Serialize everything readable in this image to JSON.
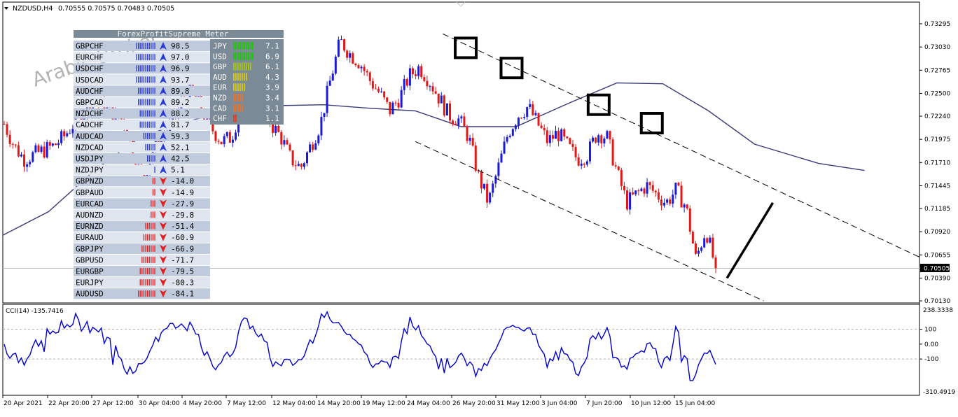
{
  "header": {
    "symbol_label": "NZDUSD,H4",
    "ohlc_label": "0.70555 0.70575 0.70483 0.70505"
  },
  "watermark": "Arabic Broker",
  "current_price_label": "0.70505",
  "meter": {
    "title": "ForexProfitSupreme Meter",
    "pairs": [
      {
        "pair": "GBPCHF",
        "value": "98.5",
        "bars": 11,
        "dir": "up"
      },
      {
        "pair": "EURCHF",
        "value": "97.0",
        "bars": 11,
        "dir": "up"
      },
      {
        "pair": "USDCHF",
        "value": "96.9",
        "bars": 11,
        "dir": "up"
      },
      {
        "pair": "USDCAD",
        "value": "93.7",
        "bars": 11,
        "dir": "up"
      },
      {
        "pair": "AUDCHF",
        "value": "89.8",
        "bars": 10,
        "dir": "up"
      },
      {
        "pair": "GBPCAD",
        "value": "89.2",
        "bars": 10,
        "dir": "up"
      },
      {
        "pair": "NZDCHF",
        "value": "88.2",
        "bars": 9,
        "dir": "up"
      },
      {
        "pair": "CADCHF",
        "value": "81.7",
        "bars": 9,
        "dir": "up"
      },
      {
        "pair": "AUDCAD",
        "value": "59.3",
        "bars": 7,
        "dir": "up"
      },
      {
        "pair": "NZDCAD",
        "value": "52.1",
        "bars": 6,
        "dir": "up"
      },
      {
        "pair": "USDJPY",
        "value": "42.5",
        "bars": 5,
        "dir": "up"
      },
      {
        "pair": "NZDJPY",
        "value": "5.1",
        "bars": 1,
        "dir": "up"
      },
      {
        "pair": "GBPNZD",
        "value": "-14.0",
        "bars": 2,
        "dir": "down"
      },
      {
        "pair": "GBPAUD",
        "value": "-14.9",
        "bars": 2,
        "dir": "down"
      },
      {
        "pair": "EURCAD",
        "value": "-27.9",
        "bars": 3,
        "dir": "down"
      },
      {
        "pair": "AUDNZD",
        "value": "-29.8",
        "bars": 3,
        "dir": "down"
      },
      {
        "pair": "EURNZD",
        "value": "-51.4",
        "bars": 6,
        "dir": "down"
      },
      {
        "pair": "EURAUD",
        "value": "-60.9",
        "bars": 7,
        "dir": "down"
      },
      {
        "pair": "GBPJPY",
        "value": "-66.9",
        "bars": 8,
        "dir": "down"
      },
      {
        "pair": "GBPUSD",
        "value": "-71.7",
        "bars": 8,
        "dir": "down"
      },
      {
        "pair": "EURGBP",
        "value": "-79.5",
        "bars": 9,
        "dir": "down"
      },
      {
        "pair": "EURJPY",
        "value": "-80.3",
        "bars": 9,
        "dir": "down"
      },
      {
        "pair": "AUDUSD",
        "value": "-84.1",
        "bars": 10,
        "dir": "down"
      }
    ],
    "currencies": [
      {
        "name": "JPY",
        "value": "7.1",
        "bars": 10,
        "color": "#22c40c"
      },
      {
        "name": "USD",
        "value": "6.9",
        "bars": 10,
        "color": "#22c40c"
      },
      {
        "name": "GBP",
        "value": "6.1",
        "bars": 9,
        "color": "#a8c415"
      },
      {
        "name": "AUD",
        "value": "4.3",
        "bars": 7,
        "color": "#d8c81a"
      },
      {
        "name": "EUR",
        "value": "3.9",
        "bars": 6,
        "color": "#d8c81a"
      },
      {
        "name": "NZD",
        "value": "3.4",
        "bars": 5,
        "color": "#e8732a"
      },
      {
        "name": "CAD",
        "value": "3.1",
        "bars": 5,
        "color": "#e8732a"
      },
      {
        "name": "CHF",
        "value": "1.1",
        "bars": 2,
        "color": "#e5391e"
      }
    ]
  },
  "cci": {
    "label": "CCI(14) -135.7416",
    "max_label": "238.3338",
    "min_label": "-310.4919",
    "levels": [
      100,
      0,
      -100
    ],
    "level_labels": [
      "100",
      "0.00",
      "-100"
    ]
  },
  "chart_data": {
    "type": "candlestick",
    "symbol": "NZDUSD",
    "timeframe": "H4",
    "price_axis_ticks": [
      "0.73295",
      "0.73030",
      "0.72765",
      "0.72500",
      "0.72240",
      "0.71975",
      "0.71710",
      "0.71445",
      "0.71185",
      "0.70920",
      "0.70655",
      "0.70390",
      "0.70130"
    ],
    "time_axis_ticks": [
      "20 Apr 2021",
      "22 Apr 20:00",
      "27 Apr 12:00",
      "30 Apr 04:00",
      "4 May 20:00",
      "7 May 12:00",
      "12 May 04:00",
      "14 May 20:00",
      "19 May 12:00",
      "24 May 04:00",
      "26 May 20:00",
      "31 May 12:00",
      "3 Jun 04:00",
      "7 Jun 20:00",
      "10 Jun 12:00",
      "15 Jun 04:00"
    ],
    "current_price": 0.70505,
    "close_path": [
      0.7215,
      0.719,
      0.7175,
      0.718,
      0.7185,
      0.719,
      0.72,
      0.7215,
      0.723,
      0.724,
      0.7235,
      0.7225,
      0.722,
      0.7185,
      0.715,
      0.7185,
      0.72,
      0.7215,
      0.724,
      0.7255,
      0.723,
      0.721,
      0.7195,
      0.72,
      0.7235,
      0.7255,
      0.7245,
      0.7215,
      0.72,
      0.7175,
      0.7165,
      0.719,
      0.7215,
      0.7265,
      0.731,
      0.7295,
      0.7285,
      0.7265,
      0.725,
      0.723,
      0.7245,
      0.727,
      0.728,
      0.7265,
      0.7245,
      0.7225,
      0.722,
      0.72,
      0.7155,
      0.7125,
      0.7165,
      0.7205,
      0.7225,
      0.7235,
      0.7215,
      0.7195,
      0.7205,
      0.719,
      0.7175,
      0.718,
      0.7205,
      0.72,
      0.716,
      0.7125,
      0.7135,
      0.7145,
      0.7135,
      0.7125,
      0.714,
      0.712,
      0.706,
      0.7095,
      0.705
    ],
    "moving_average": [
      [
        0.0,
        0.7088
      ],
      [
        0.05,
        0.7115
      ],
      [
        0.1,
        0.7162
      ],
      [
        0.15,
        0.72
      ],
      [
        0.2,
        0.7218
      ],
      [
        0.25,
        0.723
      ],
      [
        0.3,
        0.7236
      ],
      [
        0.35,
        0.7237
      ],
      [
        0.4,
        0.7233
      ],
      [
        0.45,
        0.723
      ],
      [
        0.5,
        0.7212
      ],
      [
        0.56,
        0.7212
      ],
      [
        0.62,
        0.724
      ],
      [
        0.67,
        0.7262
      ],
      [
        0.72,
        0.7261
      ],
      [
        0.77,
        0.723
      ],
      [
        0.82,
        0.7192
      ],
      [
        0.89,
        0.717
      ],
      [
        0.94,
        0.7162
      ]
    ],
    "channel_upper": [
      [
        0.48,
        0.7318
      ],
      [
        1.0,
        0.7063
      ]
    ],
    "channel_lower": [
      [
        0.45,
        0.7195
      ],
      [
        0.83,
        0.7013
      ]
    ],
    "boxes": [
      [
        0.505,
        0.7302
      ],
      [
        0.555,
        0.7279
      ],
      [
        0.65,
        0.7237
      ],
      [
        0.708,
        0.7216
      ]
    ],
    "arrow_line": [
      [
        0.79,
        0.7039
      ],
      [
        0.84,
        0.7125
      ]
    ]
  }
}
